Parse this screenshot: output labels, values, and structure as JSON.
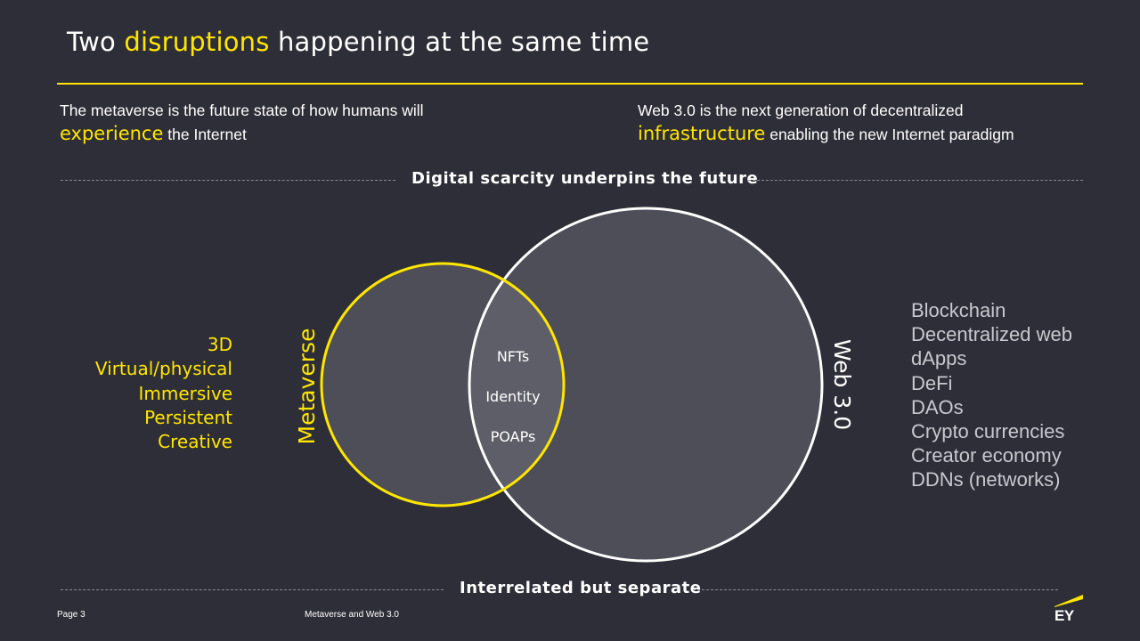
{
  "header": {
    "title_pre": "Two ",
    "title_highlight": "disruptions",
    "title_post": " happening at the same time"
  },
  "left_intro": {
    "line1": "The metaverse is the future state of how humans will",
    "highlight": "experience",
    "line2_rest": " the Internet"
  },
  "right_intro": {
    "line1": "Web 3.0 is the next generation of decentralized",
    "highlight": "infrastructure",
    "line2_rest": " enabling the new Internet paradigm"
  },
  "top_band_label": "Digital scarcity underpins the future",
  "bottom_band_label": "Interrelated but separate",
  "diagram": {
    "metaverse_label": "Metaverse",
    "web3_label": "Web 3.0",
    "overlap_items": [
      "NFTs",
      "Identity",
      "POAPs"
    ]
  },
  "metaverse_traits": [
    "3D",
    "Virtual/physical",
    "Immersive",
    "Persistent",
    "Creative"
  ],
  "web3_traits": [
    "Blockchain",
    "Decentralized web",
    "dApps",
    "DeFi",
    "DAOs",
    "Crypto currencies",
    "Creator economy",
    "DDNs (networks)"
  ],
  "footer": {
    "page": "Page 3",
    "doc_title": "Metaverse and Web 3.0",
    "logo_text": "EY"
  },
  "colors": {
    "background": "#2e2e38",
    "accent": "#ffe600",
    "circle_fill": "#4e4e59",
    "text": "#ffffff",
    "muted_text": "#c8c8d0"
  }
}
